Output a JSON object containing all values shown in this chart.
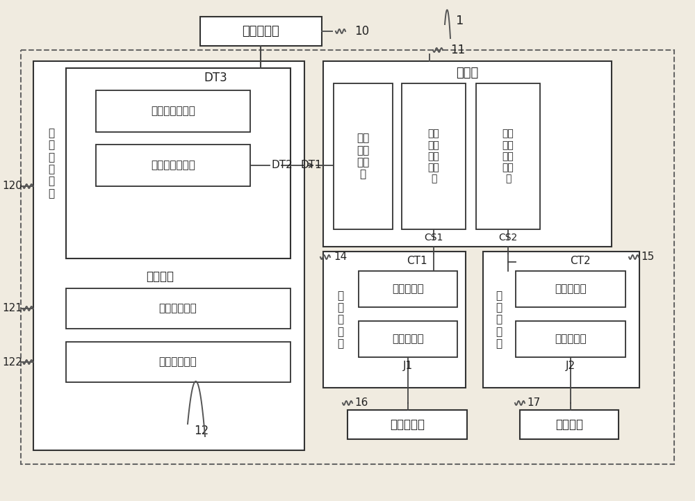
{
  "bg_color": "#f0ebe0",
  "box_fc": "#ffffff",
  "border_color": "#333333",
  "line_color": "#444444",
  "fs_large": 13,
  "fs_med": 11,
  "fs_small": 10,
  "labels": {
    "top_cabinet": "扶梯控制柜",
    "n10": "10",
    "n1": "1",
    "n11": "11",
    "controller": "控制器",
    "first_data": "第一\n数据\n通讯\n端",
    "first_ctrl": "第一\n控制\n信号\n输出\n端",
    "second_ctrl": "第二\n控制\n信号\n输出\n端",
    "CS1": "CS1",
    "CS2": "CS2",
    "DT1": "DT1",
    "DT2": "DT2",
    "DT3": "DT3",
    "comm_module": "通讯模块",
    "first_comm": "第\n一\n通\n讯\n电\n路",
    "third_data": "第三数据通讯端",
    "second_data": "第二数据通讯端",
    "second_comm": "第二通讯电路",
    "third_comm": "第三通讯电路",
    "n120": "120",
    "n121": "121",
    "n122": "122",
    "n12": "12",
    "n14": "14",
    "n15": "15",
    "n16": "16",
    "n17": "17",
    "first_relay_v": "第\n一\n继\n电\n器",
    "CT1": "CT1",
    "first_ctrl_t": "第一控制端",
    "first_conn_t": "第一连接端",
    "J1": "J1",
    "second_relay_v": "第\n二\n继\n电\n器",
    "CT2": "CT2",
    "second_ctrl_t": "第二控制端",
    "second_conn_t": "第二连接端",
    "J2": "J2",
    "bot_cabinet": "扶梯控制柜",
    "alarm": "告警系统"
  }
}
